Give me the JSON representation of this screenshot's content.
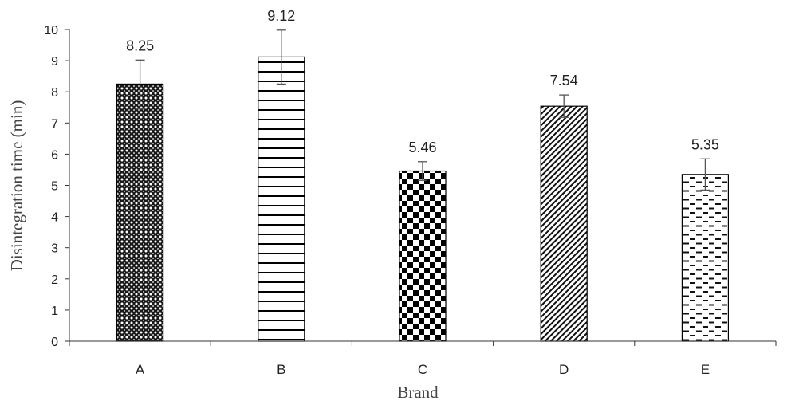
{
  "chart_data": {
    "type": "bar",
    "categories": [
      "A",
      "B",
      "C",
      "D",
      "E"
    ],
    "values": [
      8.25,
      9.12,
      5.46,
      7.54,
      5.35
    ],
    "data_labels": [
      "8.25",
      "9.12",
      "5.46",
      "7.54",
      "5.35"
    ],
    "error_bars": [
      {
        "low": 7.45,
        "high": 9.02
      },
      {
        "low": 8.25,
        "high": 9.98
      },
      {
        "low": 5.16,
        "high": 5.76
      },
      {
        "low": 7.18,
        "high": 7.9
      },
      {
        "low": 4.85,
        "high": 5.85
      }
    ],
    "patterns": [
      "crosshatch-dots",
      "horizontal-lines",
      "checkerboard",
      "diagonal-lines",
      "dashes"
    ],
    "title": "",
    "xlabel": "Brand",
    "ylabel": "Disintegration time (min)",
    "ylim": [
      0,
      10
    ],
    "yticks": [
      "0",
      "1",
      "2",
      "3",
      "4",
      "5",
      "6",
      "7",
      "8",
      "9",
      "10"
    ],
    "grid": false,
    "legend": "none",
    "colors": {
      "bar_stroke": "#000000",
      "axis": "#333333",
      "error_bar": "#555555"
    }
  }
}
